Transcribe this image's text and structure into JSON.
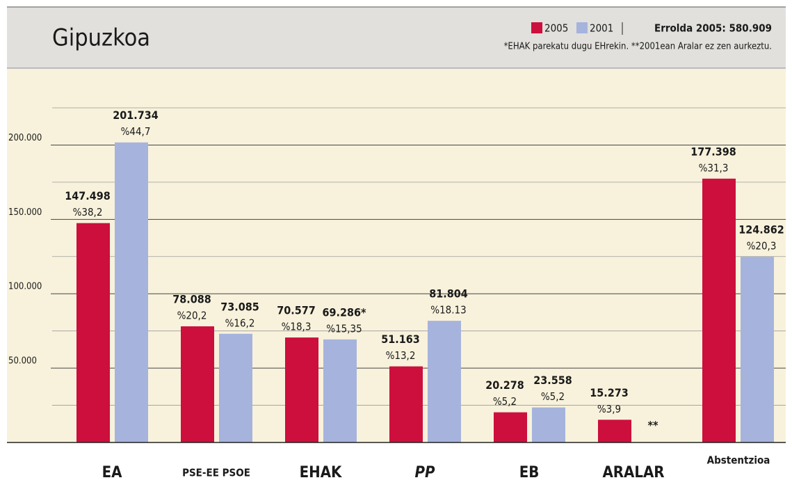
{
  "chart_data": {
    "type": "bar",
    "title": "Gipuzkoa",
    "registry": "Errolda 2005: 580.909",
    "note": "*EHAK parekatu dugu EHrekin.  **2001ean Aralar ez zen aurkeztu.",
    "categories": [
      "EA",
      "PSE-EE PSOE",
      "EHAK",
      "PP",
      "EB",
      "ARALAR",
      "Abstentzioa"
    ],
    "series": [
      {
        "name": "2005",
        "color": "#cc0f3d",
        "values": [
          147498,
          78088,
          70577,
          51163,
          20278,
          15273,
          177398
        ],
        "value_labels": [
          "147.498",
          "78.088",
          "70.577",
          "51.163",
          "20.278",
          "15.273",
          "177.398"
        ],
        "percent_labels": [
          "%38,2",
          "%20,2",
          "%18,3",
          "%13,2",
          "%5,2",
          "%3,9",
          "%31,3"
        ]
      },
      {
        "name": "2001",
        "color": "#a6b3dd",
        "values": [
          201734,
          73085,
          69286,
          81804,
          23558,
          null,
          124862
        ],
        "value_labels": [
          "201.734",
          "73.085",
          "69.286*",
          "81.804",
          "23.558",
          "**",
          "124.862"
        ],
        "percent_labels": [
          "%44,7",
          "%16,2",
          "%15,35",
          "%18.13",
          "%5,2",
          null,
          "%20,3"
        ]
      }
    ],
    "ylim": [
      0,
      225000
    ],
    "yticks": [
      {
        "value": 50000,
        "label": "50.000"
      },
      {
        "value": 100000,
        "label": "100.000"
      },
      {
        "value": 150000,
        "label": "150.000"
      },
      {
        "value": 200000,
        "label": "200.000"
      }
    ],
    "minor_grid": [
      25000,
      75000,
      125000,
      175000,
      225000
    ],
    "grid": true
  }
}
